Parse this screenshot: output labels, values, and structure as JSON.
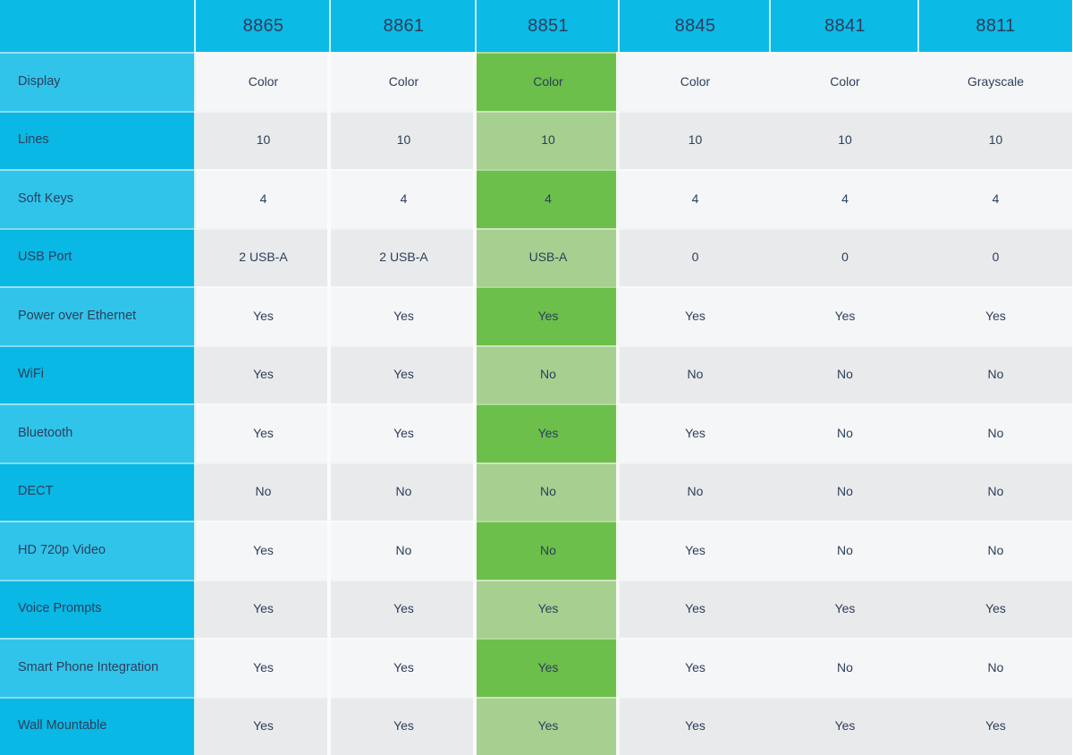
{
  "chart_data": {
    "type": "table",
    "columns": [
      "",
      "8865",
      "8861",
      "8851",
      "8845",
      "8841",
      "8811"
    ],
    "highlight_column": "8851",
    "rows": [
      [
        "Display",
        "Color",
        "Color",
        "Color",
        "Color",
        "Color",
        "Grayscale"
      ],
      [
        "Lines",
        "10",
        "10",
        "10",
        "10",
        "10",
        "10"
      ],
      [
        "Soft Keys",
        "4",
        "4",
        "4",
        "4",
        "4",
        "4"
      ],
      [
        "USB Port",
        "2 USB-A",
        "2 USB-A",
        "USB-A",
        "0",
        "0",
        "0"
      ],
      [
        "Power over Ethernet",
        "Yes",
        "Yes",
        "Yes",
        "Yes",
        "Yes",
        "Yes"
      ],
      [
        "WiFi",
        "Yes",
        "Yes",
        "No",
        "No",
        "No",
        "No"
      ],
      [
        "Bluetooth",
        "Yes",
        "Yes",
        "Yes",
        "Yes",
        "No",
        "No"
      ],
      [
        "DECT",
        "No",
        "No",
        "No",
        "No",
        "No",
        "No"
      ],
      [
        "HD 720p Video",
        "Yes",
        "No",
        "No",
        "Yes",
        "No",
        "No"
      ],
      [
        "Voice Prompts",
        "Yes",
        "Yes",
        "Yes",
        "Yes",
        "Yes",
        "Yes"
      ],
      [
        "Smart Phone Integration",
        "Yes",
        "Yes",
        "Yes",
        "Yes",
        "No",
        "No"
      ],
      [
        "Wall Mountable",
        "Yes",
        "Yes",
        "Yes",
        "Yes",
        "Yes",
        "Yes"
      ]
    ],
    "layout": {
      "header_position": "top",
      "feature_column_position": "left",
      "grid": "off",
      "legend": "none"
    },
    "colors": {
      "header_cyan": "#0CBAE6",
      "feature_cyan_light": "#31C4EA",
      "feature_cyan_dark": "#09B8E4",
      "highlight_green_dark": "#6CBF4B",
      "highlight_green_light": "#A7CF8F",
      "row_light": "#F5F6F7",
      "row_dark": "#E9EAEB",
      "text_navy": "#2C3E5C"
    }
  }
}
